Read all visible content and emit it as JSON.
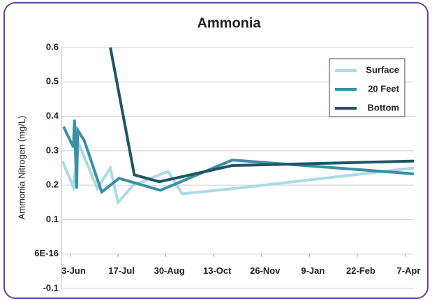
{
  "chart_data": {
    "type": "line",
    "title": "Ammonia",
    "y_label": "Ammonia Nitrogen (mg/L)",
    "xlim": [
      -8,
      316
    ],
    "xticks": [
      {
        "value": 0,
        "label": "3-Jun"
      },
      {
        "value": 44,
        "label": "17-Jul"
      },
      {
        "value": 88,
        "label": "30-Aug"
      },
      {
        "value": 132,
        "label": "13-Oct"
      },
      {
        "value": 176,
        "label": "26-Nov"
      },
      {
        "value": 220,
        "label": "9-Jan"
      },
      {
        "value": 264,
        "label": "22-Feb"
      },
      {
        "value": 308,
        "label": "7-Apr"
      }
    ],
    "ylim": [
      -0.1,
      0.6
    ],
    "yticks": [
      0.6,
      0.5,
      0.4,
      0.3,
      0.2,
      0.1,
      {
        "value": 6e-16,
        "label": "6E-16"
      },
      -0.1
    ],
    "grid": true,
    "legend": "upper right",
    "series": [
      {
        "name": "Surface",
        "color": "#a9dbe3",
        "x": [
          -7,
          3,
          8,
          25,
          37,
          44,
          58,
          90,
          103,
          150,
          316
        ],
        "values": [
          0.27,
          0.195,
          0.32,
          0.19,
          0.25,
          0.15,
          0.2,
          0.24,
          0.175,
          0.19,
          0.25
        ]
      },
      {
        "name": "20 Feet",
        "color": "#3a8fa6",
        "x": [
          -6,
          3,
          4,
          6,
          7,
          13,
          29,
          45,
          83,
          149,
          316
        ],
        "values": [
          0.37,
          0.31,
          0.39,
          0.19,
          0.36,
          0.33,
          0.18,
          0.22,
          0.185,
          0.273,
          0.233
        ]
      },
      {
        "name": "Bottom",
        "color": "#1f5565",
        "x": [
          37,
          59,
          82,
          149,
          316
        ],
        "values": [
          0.6,
          0.23,
          0.21,
          0.257,
          0.27
        ]
      }
    ]
  }
}
